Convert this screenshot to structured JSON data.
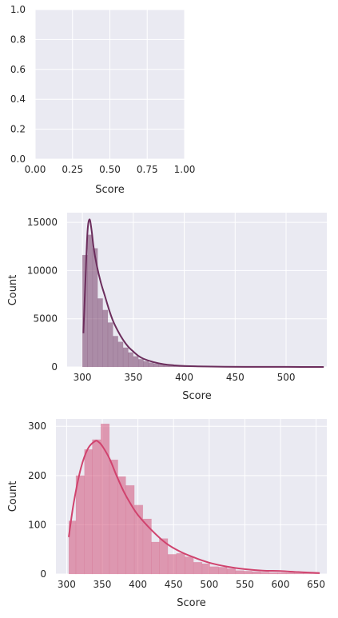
{
  "chart_data": [
    {
      "type": "line",
      "xlabel": "Score",
      "ylabel": "",
      "xlim": [
        0,
        1
      ],
      "ylim": [
        0,
        1
      ],
      "xticks": [
        "0.00",
        "0.25",
        "0.50",
        "0.75",
        "1.00"
      ],
      "yticks": [
        "0.0",
        "0.2",
        "0.4",
        "0.6",
        "0.8",
        "1.0"
      ],
      "grid": true,
      "series": []
    },
    {
      "type": "bar",
      "xlabel": "Score",
      "ylabel": "Count",
      "xlim": [
        285,
        540
      ],
      "ylim": [
        0,
        16000
      ],
      "xticks": [
        "300",
        "350",
        "400",
        "450",
        "500"
      ],
      "yticks": [
        "0",
        "5000",
        "10000",
        "15000"
      ],
      "grid": true,
      "color": "#6b2d5c",
      "histogram": {
        "bin_edges": [
          300,
          305,
          310,
          315,
          320,
          325,
          330,
          335,
          340,
          345,
          350,
          355,
          360,
          365,
          370,
          375,
          380,
          385,
          390,
          395,
          400,
          410,
          420,
          430,
          440,
          450,
          460,
          480,
          500,
          520,
          537
        ],
        "counts": [
          11600,
          13700,
          12300,
          7100,
          5900,
          4600,
          3200,
          2600,
          2000,
          1500,
          1100,
          800,
          600,
          450,
          350,
          270,
          200,
          150,
          120,
          90,
          70,
          50,
          35,
          25,
          18,
          12,
          8,
          5,
          3,
          2
        ]
      },
      "kde": {
        "x": [
          301,
          303,
          305,
          307,
          309,
          311,
          314,
          318,
          322,
          326,
          330,
          335,
          340,
          345,
          350,
          355,
          360,
          370,
          380,
          390,
          400,
          420,
          440,
          470,
          500,
          537
        ],
        "y": [
          3500,
          9000,
          14000,
          15300,
          14200,
          12400,
          10600,
          8800,
          7400,
          6000,
          4800,
          3700,
          2800,
          2100,
          1600,
          1150,
          850,
          500,
          280,
          170,
          100,
          50,
          25,
          12,
          6,
          3
        ]
      }
    },
    {
      "type": "bar",
      "xlabel": "Score",
      "ylabel": "Count",
      "xlim": [
        285,
        665
      ],
      "ylim": [
        0,
        315
      ],
      "xticks": [
        "300",
        "350",
        "400",
        "450",
        "500",
        "550",
        "600",
        "650"
      ],
      "yticks": [
        "0",
        "100",
        "200",
        "300"
      ],
      "grid": true,
      "color": "#d0436e",
      "histogram": {
        "bin_edges": [
          303,
          313,
          325,
          336,
          348,
          360,
          372,
          383,
          395,
          407,
          419,
          430,
          442,
          454,
          466,
          478,
          490,
          501,
          513,
          525,
          537,
          549,
          560,
          572,
          584,
          596,
          608,
          620,
          632,
          643,
          655
        ],
        "counts": [
          108,
          200,
          253,
          273,
          305,
          232,
          198,
          180,
          140,
          112,
          65,
          72,
          40,
          42,
          35,
          24,
          21,
          15,
          14,
          11,
          7,
          6,
          5,
          4,
          3,
          3,
          3,
          2,
          2,
          1
        ]
      },
      "kde": {
        "x": [
          303,
          310,
          320,
          330,
          340,
          345,
          350,
          360,
          370,
          380,
          390,
          400,
          420,
          440,
          460,
          480,
          500,
          525,
          550,
          575,
          600,
          625,
          655
        ],
        "y": [
          75,
          145,
          215,
          255,
          270,
          268,
          260,
          235,
          200,
          168,
          142,
          120,
          88,
          62,
          45,
          33,
          23,
          15,
          10,
          7,
          6,
          4,
          2
        ]
      }
    }
  ]
}
